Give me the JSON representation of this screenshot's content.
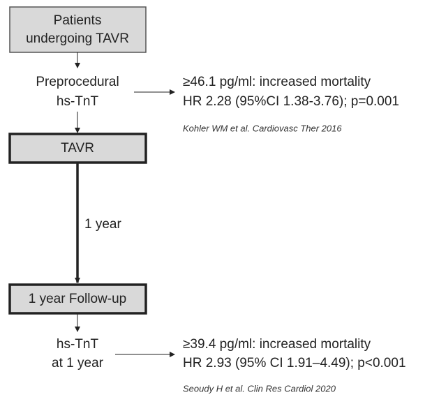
{
  "nodes": [
    {
      "label": [
        "Patients",
        "undergoing TAVR"
      ]
    },
    {
      "label": [
        "Preprocedural",
        "hs-TnT"
      ]
    },
    {
      "label": [
        "TAVR"
      ]
    },
    {
      "label": [
        "1 year Follow-up"
      ]
    },
    {
      "label": [
        "hs-TnT",
        "at 1 year"
      ]
    }
  ],
  "edge_label": "1 year",
  "findings": [
    {
      "lines": [
        "≥46.1 pg/ml: increased mortality",
        "HR 2.28 (95%CI 1.38-3.76); p=0.001"
      ],
      "reference": "Kohler WM et al. Cardiovasc Ther 2016"
    },
    {
      "lines": [
        "≥39.4 pg/ml: increased mortality",
        "HR 2.93 (95% CI 1.91–4.49); p<0.001"
      ],
      "reference": "Seoudy H et al. Clin Res Cardiol 2020"
    }
  ]
}
